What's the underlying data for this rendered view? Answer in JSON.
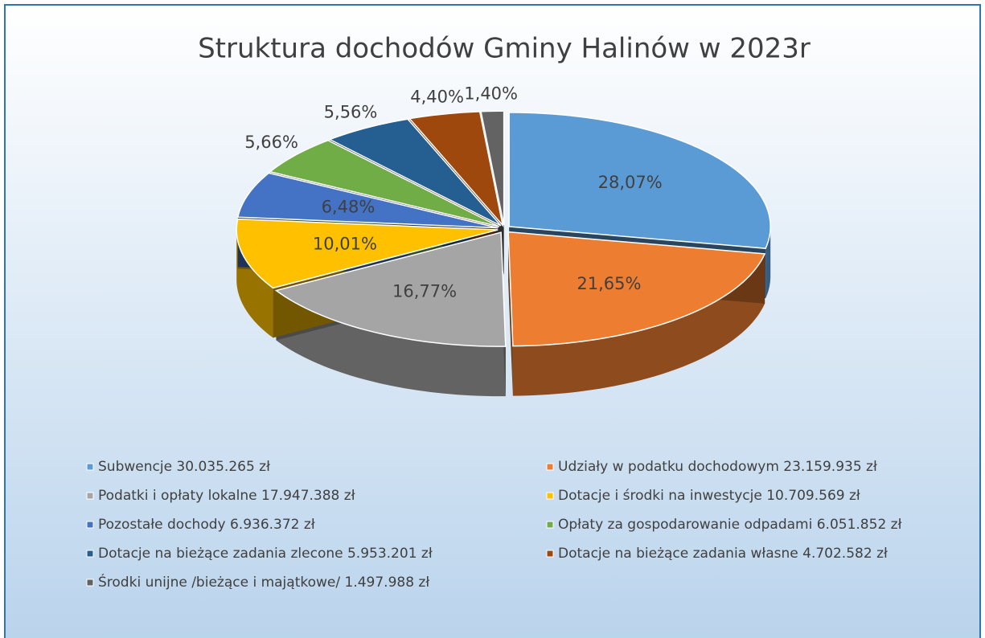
{
  "chart_data": {
    "type": "pie",
    "title": "Struktura dochodów Gminy Halinów w 2023r",
    "categories": [
      "Subwencje 30.035.265 zł",
      "Udziały w podatku dochodowym 23.159.935 zł",
      "Podatki i opłaty lokalne 17.947.388 zł",
      "Dotacje i środki na inwestycje 10.709.569 zł",
      "Pozostałe dochody 6.936.372 zł",
      "Opłaty za gospodarowanie odpadami 6.051.852 zł",
      "Dotacje na bieżące zadania zlecone 5.953.201 zł",
      "Dotacje na bieżące zadania własne 4.702.582 zł",
      "Środki unijne /bieżące i majątkowe/ 1.497.988 zł"
    ],
    "values": [
      28.07,
      21.65,
      16.77,
      10.01,
      6.48,
      5.66,
      5.56,
      4.4,
      1.4
    ],
    "value_labels": [
      "28,07%",
      "21,65%",
      "16,77%",
      "10,01%",
      "6,48%",
      "5,66%",
      "5,56%",
      "4,40%",
      "1,40%"
    ],
    "colors": [
      "#5b9bd5",
      "#ed7d31",
      "#a5a5a5",
      "#ffc000",
      "#4472c4",
      "#70ad47",
      "#255e91",
      "#9e480e",
      "#636363"
    ],
    "legend": "bottom"
  }
}
